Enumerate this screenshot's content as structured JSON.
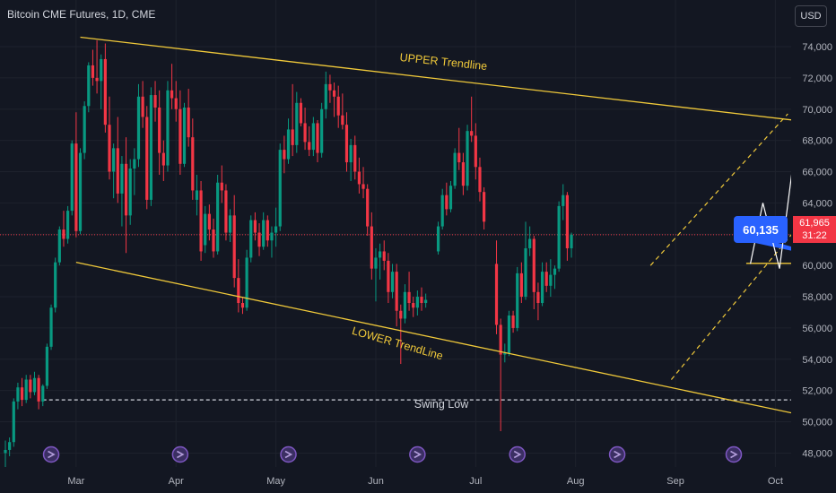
{
  "header": {
    "title": "Bitcoin CME Futures, 1D, CME"
  },
  "currency_button": "USD",
  "last_price": {
    "value": "61,965",
    "countdown": "31:22"
  },
  "callout": {
    "label": "60,135"
  },
  "colors": {
    "background": "#131722",
    "up": "#089981",
    "down": "#f23645",
    "trendline": "#f0c93a",
    "swing_low": "#d1d4dc",
    "callout": "#2962ff",
    "projection": "#ffffff",
    "event_icon": "#7e57c2"
  },
  "chart_data": {
    "type": "candlestick",
    "y_axis": {
      "range": [
        47000,
        75000
      ],
      "ticks": [
        48000,
        50000,
        52000,
        54000,
        56000,
        58000,
        60000,
        62000,
        64000,
        66000,
        68000,
        70000,
        72000,
        74000
      ],
      "tick_labels": [
        "48,000",
        "50,000",
        "52,000",
        "54,000",
        "56,000",
        "58,000",
        "60,000",
        "62,000",
        "64,000",
        "66,000",
        "68,000",
        "70,000",
        "72,000",
        "74,000"
      ]
    },
    "x_axis": {
      "months": [
        "Mar",
        "Apr",
        "May",
        "Jun",
        "Jul",
        "Aug",
        "Sep",
        "Oct"
      ],
      "month_index": [
        17,
        41,
        65,
        89,
        113,
        137,
        161,
        185
      ]
    },
    "candles": [
      [
        48000,
        48800,
        47000,
        48200
      ],
      [
        48200,
        49000,
        47800,
        48700
      ],
      [
        48700,
        51500,
        48400,
        51300
      ],
      [
        51300,
        52500,
        50800,
        52200
      ],
      [
        52200,
        52800,
        51000,
        51400
      ],
      [
        51400,
        53000,
        51200,
        52700
      ],
      [
        52700,
        53000,
        51500,
        51900
      ],
      [
        51900,
        53200,
        51700,
        52800
      ],
      [
        52800,
        53000,
        50800,
        51300
      ],
      [
        51300,
        52400,
        51000,
        52300
      ],
      [
        52300,
        55000,
        52100,
        54800
      ],
      [
        54800,
        57500,
        54600,
        57300
      ],
      [
        57300,
        60500,
        57000,
        60200
      ],
      [
        60200,
        62500,
        60000,
        62300
      ],
      [
        62300,
        63500,
        61200,
        61700
      ],
      [
        61700,
        63800,
        61400,
        63500
      ],
      [
        63500,
        68000,
        63200,
        67800
      ],
      [
        67800,
        69800,
        61800,
        62200
      ],
      [
        62200,
        67500,
        62000,
        67200
      ],
      [
        67200,
        70500,
        66800,
        70200
      ],
      [
        70200,
        73000,
        69800,
        72800
      ],
      [
        72800,
        73800,
        71500,
        72000
      ],
      [
        72000,
        74400,
        71000,
        71800
      ],
      [
        71800,
        73500,
        70000,
        73200
      ],
      [
        73200,
        74200,
        68500,
        69000
      ],
      [
        69000,
        70800,
        65500,
        66000
      ],
      [
        66000,
        67800,
        64300,
        67500
      ],
      [
        67500,
        69500,
        64000,
        64600
      ],
      [
        64600,
        67000,
        62500,
        66500
      ],
      [
        66500,
        68200,
        60800,
        63200
      ],
      [
        63200,
        66800,
        62600,
        66200
      ],
      [
        66200,
        67500,
        64500,
        66800
      ],
      [
        66800,
        71600,
        66300,
        70800
      ],
      [
        70800,
        71800,
        68800,
        69500
      ],
      [
        69500,
        70200,
        63600,
        64200
      ],
      [
        64200,
        71400,
        63800,
        70900
      ],
      [
        70900,
        71800,
        69200,
        70100
      ],
      [
        70100,
        71200,
        65800,
        67200
      ],
      [
        67200,
        68000,
        65400,
        66400
      ],
      [
        66400,
        71800,
        66000,
        71200
      ],
      [
        71200,
        72900,
        70000,
        70700
      ],
      [
        70700,
        71800,
        69200,
        70000
      ],
      [
        70000,
        71200,
        65800,
        66500
      ],
      [
        66500,
        70400,
        66300,
        70100
      ],
      [
        70100,
        71300,
        67600,
        68200
      ],
      [
        68200,
        69400,
        64200,
        64800
      ],
      [
        64200,
        65800,
        63200,
        64800
      ],
      [
        64800,
        65400,
        60300,
        60900
      ],
      [
        61300,
        63800,
        60800,
        63300
      ],
      [
        63300,
        63900,
        61600,
        62300
      ],
      [
        62300,
        63000,
        60500,
        60900
      ],
      [
        60900,
        65800,
        60700,
        65300
      ],
      [
        65300,
        66400,
        64000,
        64800
      ],
      [
        64800,
        65200,
        61600,
        62100
      ],
      [
        62100,
        63600,
        61500,
        63200
      ],
      [
        63200,
        64500,
        58600,
        59200
      ],
      [
        59200,
        60400,
        57000,
        57600
      ],
      [
        57600,
        58000,
        56900,
        57300
      ],
      [
        57300,
        61000,
        57100,
        60500
      ],
      [
        60500,
        63200,
        60200,
        62900
      ],
      [
        62900,
        63400,
        61600,
        62100
      ],
      [
        62100,
        62700,
        60600,
        61200
      ],
      [
        61200,
        63400,
        61000,
        62900
      ],
      [
        62900,
        63200,
        61200,
        61600
      ],
      [
        61600,
        62500,
        60500,
        62100
      ],
      [
        62100,
        63700,
        61200,
        62500
      ],
      [
        62500,
        67800,
        62200,
        67400
      ],
      [
        67400,
        68300,
        65900,
        66800
      ],
      [
        66800,
        69400,
        66500,
        68700
      ],
      [
        68700,
        71600,
        67000,
        67700
      ],
      [
        67700,
        71100,
        67200,
        70400
      ],
      [
        70400,
        70700,
        68900,
        69100
      ],
      [
        69100,
        70100,
        67400,
        67900
      ],
      [
        67900,
        68900,
        67000,
        67400
      ],
      [
        67400,
        69500,
        67000,
        69100
      ],
      [
        69100,
        69300,
        66600,
        67200
      ],
      [
        67200,
        70400,
        66900,
        70000
      ],
      [
        70000,
        72400,
        69400,
        71600
      ],
      [
        71600,
        72200,
        70400,
        71200
      ],
      [
        71200,
        71700,
        69500,
        70800
      ],
      [
        70800,
        71500,
        68800,
        69600
      ],
      [
        69600,
        71000,
        68700,
        69000
      ],
      [
        69000,
        69800,
        66000,
        66600
      ],
      [
        66600,
        68100,
        65400,
        67700
      ],
      [
        67700,
        68300,
        65500,
        66000
      ],
      [
        66000,
        66900,
        64600,
        65200
      ],
      [
        65200,
        66300,
        64300,
        64900
      ],
      [
        64900,
        65200,
        61900,
        62500
      ],
      [
        62500,
        63400,
        59100,
        59800
      ],
      [
        59800,
        61100,
        57700,
        60500
      ],
      [
        60500,
        61400,
        59100,
        60900
      ],
      [
        60900,
        61600,
        59700,
        60300
      ],
      [
        60300,
        60800,
        57600,
        58300
      ],
      [
        58300,
        60100,
        57900,
        59600
      ],
      [
        59600,
        60100,
        56100,
        57100
      ],
      [
        57100,
        57500,
        53700,
        56600
      ],
      [
        56600,
        58800,
        56300,
        58300
      ],
      [
        58300,
        59600,
        57100,
        57600
      ],
      [
        57600,
        58000,
        56700,
        57300
      ],
      [
        57300,
        58400,
        56800,
        58000
      ],
      [
        58000,
        58600,
        57100,
        57600
      ],
      [
        57600,
        58200,
        57300,
        57800
      ],
      [
        null,
        null,
        null,
        null
      ],
      [
        null,
        null,
        null,
        null
      ],
      [
        60900,
        62800,
        60700,
        62500
      ],
      [
        62500,
        64900,
        62300,
        64500
      ],
      [
        64500,
        65300,
        63200,
        63600
      ],
      [
        63600,
        65400,
        63400,
        65100
      ],
      [
        65100,
        67500,
        64900,
        67200
      ],
      [
        67200,
        68800,
        66100,
        66600
      ],
      [
        66600,
        67200,
        64500,
        65100
      ],
      [
        65100,
        69000,
        64800,
        68600
      ],
      [
        68600,
        70800,
        67900,
        68300
      ],
      [
        68300,
        69100,
        65500,
        66300
      ],
      [
        66300,
        66900,
        64100,
        64700
      ],
      [
        64700,
        65000,
        62300,
        62800
      ],
      [
        null,
        null,
        null,
        null
      ],
      [
        null,
        null,
        null,
        null
      ],
      [
        60100,
        61600,
        55600,
        56200
      ],
      [
        56200,
        56600,
        49400,
        54300
      ],
      [
        54300,
        55000,
        53800,
        54400
      ],
      [
        54400,
        57100,
        54200,
        56800
      ],
      [
        56800,
        57100,
        55700,
        56000
      ],
      [
        56000,
        59900,
        55800,
        59500
      ],
      [
        59500,
        60200,
        57600,
        58000
      ],
      [
        58000,
        62800,
        57800,
        61100
      ],
      [
        61100,
        62500,
        60600,
        61700
      ],
      [
        61700,
        61900,
        57200,
        58300
      ],
      [
        58300,
        58900,
        56500,
        57600
      ],
      [
        57600,
        60200,
        57400,
        59600
      ],
      [
        59600,
        60200,
        58300,
        58700
      ],
      [
        58700,
        60400,
        58000,
        59400
      ],
      [
        59400,
        60000,
        58500,
        59800
      ],
      [
        59800,
        64100,
        59600,
        63800
      ],
      [
        63800,
        65200,
        62900,
        64500
      ],
      [
        64500,
        64700,
        60300,
        61100
      ],
      [
        61100,
        62100,
        60500,
        61965
      ]
    ],
    "upper_trendline": {
      "x": [
        18,
        215
      ],
      "y": [
        74600,
        68500
      ],
      "label": "UPPER Trendline"
    },
    "lower_trendline": {
      "x": [
        17,
        199
      ],
      "y": [
        60200,
        50000
      ],
      "label": "LOWER TrendLine"
    },
    "swing_low": {
      "x": [
        9,
        220
      ],
      "y": 51400,
      "label": "Swing Low"
    },
    "channel_lower": {
      "x": [
        160,
        207
      ],
      "y": [
        52700,
        67800
      ]
    },
    "channel_upper": {
      "x": [
        155,
        188
      ],
      "y": [
        60000,
        69700
      ]
    },
    "target_level": {
      "x": [
        178,
        203
      ],
      "y": 60135
    },
    "projection_path": {
      "x": [
        179,
        182,
        186,
        189,
        193,
        196,
        199
      ],
      "y": [
        60100,
        64000,
        59800,
        66000,
        63800,
        67700,
        65800
      ]
    },
    "projection_arrow": {
      "x": [
        196,
        199.5
      ],
      "y": [
        65800,
        68800
      ]
    },
    "event_markers_x": [
      11,
      42,
      68,
      99,
      123,
      147,
      175,
      197
    ]
  }
}
